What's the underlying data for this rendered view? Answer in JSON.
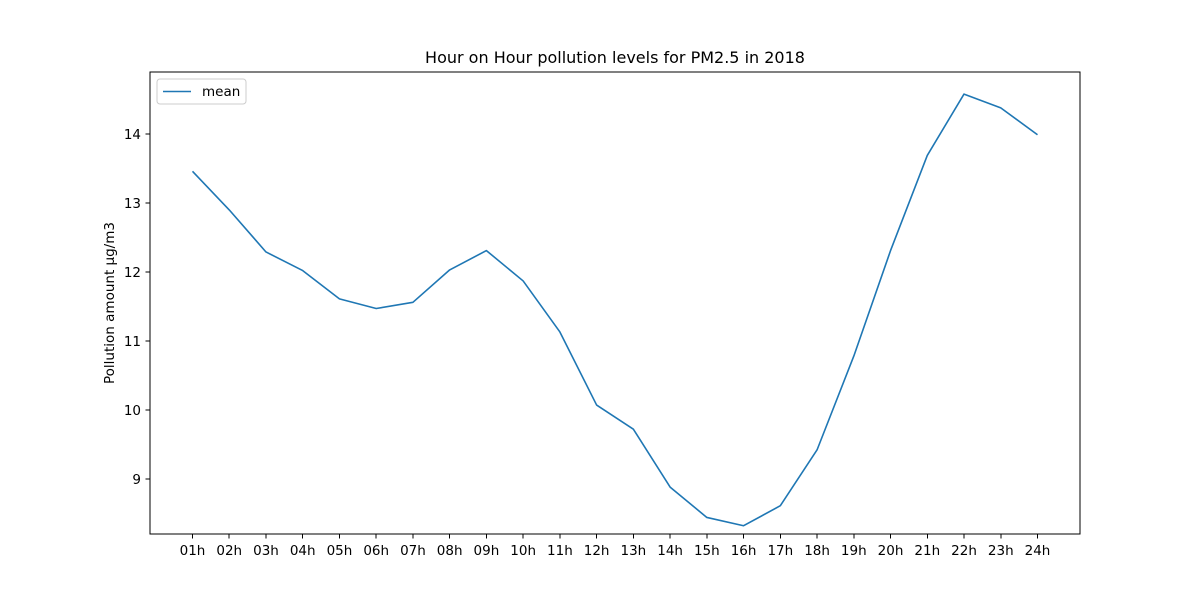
{
  "chart_data": {
    "type": "line",
    "title": "Hour on Hour pollution levels for PM2.5 in 2018",
    "xlabel": "",
    "ylabel": "Pollution amount µg/m3",
    "categories": [
      "01h",
      "02h",
      "03h",
      "04h",
      "05h",
      "06h",
      "07h",
      "08h",
      "09h",
      "10h",
      "11h",
      "12h",
      "13h",
      "14h",
      "15h",
      "16h",
      "17h",
      "18h",
      "19h",
      "20h",
      "21h",
      "22h",
      "23h",
      "24h"
    ],
    "series": [
      {
        "name": "mean",
        "color": "#1f77b4",
        "values": [
          13.46,
          12.9,
          12.29,
          12.02,
          11.61,
          11.47,
          11.56,
          12.03,
          12.31,
          11.87,
          11.13,
          10.07,
          9.72,
          8.88,
          8.44,
          8.32,
          8.61,
          9.42,
          10.78,
          12.31,
          13.69,
          14.58,
          14.38,
          13.99
        ]
      }
    ],
    "yticks": [
      9,
      10,
      11,
      12,
      13,
      14
    ],
    "ylim": [
      8.2,
      14.9
    ],
    "grid": false,
    "legend_position": "top-left"
  }
}
